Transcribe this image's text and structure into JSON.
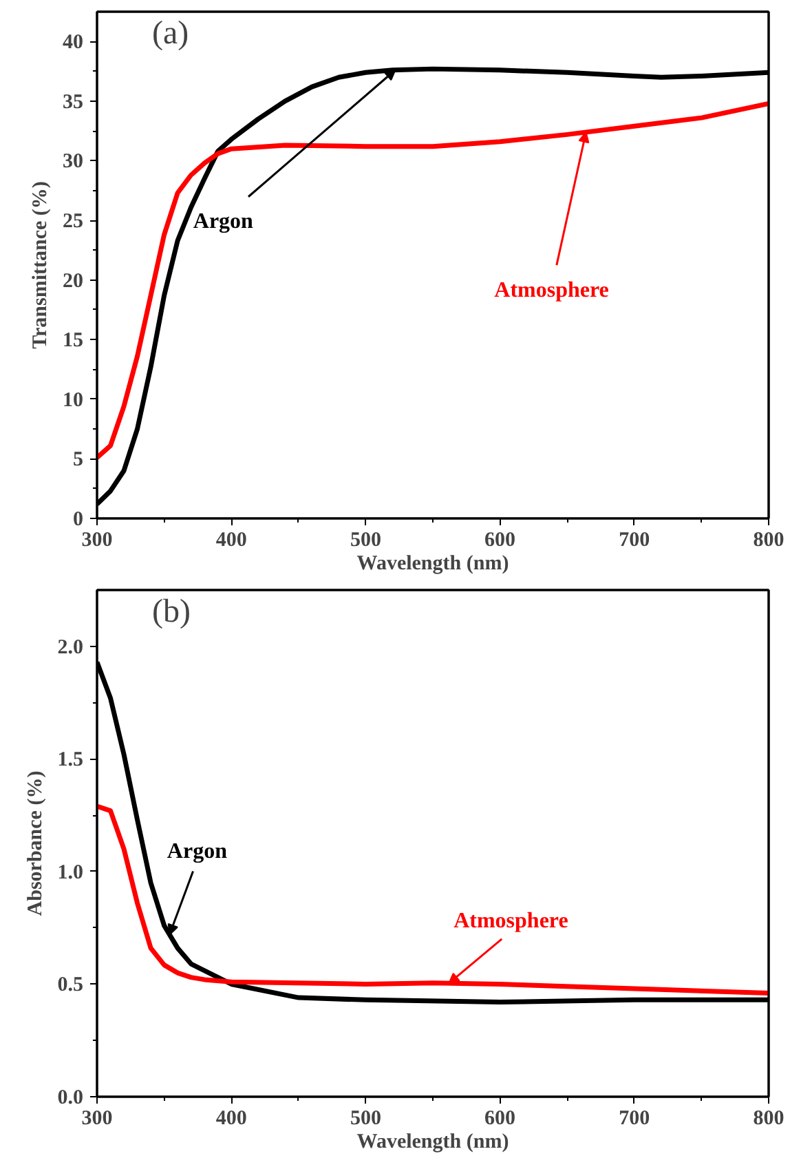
{
  "chart_data": [
    {
      "type": "line",
      "title": "(a)",
      "xlabel": "Wavelength (nm)",
      "ylabel": "Transmittance (%)",
      "xlim": [
        300,
        800
      ],
      "ylim": [
        0,
        42.5
      ],
      "xticks": [
        300,
        400,
        500,
        600,
        700,
        800
      ],
      "yticks": [
        0,
        5,
        10,
        15,
        20,
        25,
        30,
        35,
        40
      ],
      "grid": false,
      "legend": false,
      "marker": "none",
      "line_style": "solid",
      "series": [
        {
          "name": "Argon",
          "color": "#000000",
          "x": [
            300,
            310,
            320,
            330,
            340,
            350,
            360,
            370,
            380,
            390,
            400,
            420,
            440,
            460,
            480,
            500,
            520,
            550,
            600,
            650,
            700,
            720,
            750,
            800
          ],
          "values": [
            1.2,
            2.3,
            4,
            7.5,
            12.7,
            18.7,
            23.3,
            26.1,
            28.5,
            30.8,
            31.8,
            33.5,
            35,
            36.2,
            37,
            37.4,
            37.6,
            37.7,
            37.6,
            37.4,
            37.1,
            37,
            37.1,
            37.4
          ]
        },
        {
          "name": "Atmosphere",
          "color": "#ff0000",
          "x": [
            300,
            310,
            320,
            330,
            340,
            350,
            360,
            370,
            380,
            390,
            400,
            440,
            500,
            550,
            600,
            650,
            700,
            750,
            800
          ],
          "values": [
            5.1,
            6.1,
            9.4,
            13.6,
            18.7,
            23.8,
            27.3,
            28.8,
            29.8,
            30.6,
            31,
            31.3,
            31.2,
            31.2,
            31.6,
            32.2,
            32.9,
            33.6,
            34.8
          ]
        }
      ]
    },
    {
      "type": "line",
      "title": "(b)",
      "xlabel": "Wavelength (nm)",
      "ylabel": "Absorbance (%)",
      "xlim": [
        300,
        800
      ],
      "ylim": [
        0,
        2.25
      ],
      "xticks": [
        300,
        400,
        500,
        600,
        700,
        800
      ],
      "yticks": [
        {
          "value": 0,
          "label": "0.0"
        },
        0.5,
        {
          "value": 1,
          "label": "1.0"
        },
        1.5,
        {
          "value": 2,
          "label": "2.0"
        }
      ],
      "grid": false,
      "legend": false,
      "marker": "none",
      "line_style": "solid",
      "series": [
        {
          "name": "Argon",
          "color": "#000000",
          "x": [
            300,
            310,
            320,
            330,
            340,
            350,
            360,
            370,
            380,
            400,
            450,
            500,
            600,
            700,
            800
          ],
          "values": [
            1.93,
            1.77,
            1.52,
            1.23,
            0.95,
            0.76,
            0.66,
            0.59,
            0.56,
            0.5,
            0.44,
            0.43,
            0.42,
            0.43,
            0.43
          ]
        },
        {
          "name": "Atmosphere",
          "color": "#ff0000",
          "x": [
            300,
            310,
            320,
            330,
            340,
            350,
            360,
            370,
            380,
            400,
            500,
            550,
            600,
            700,
            800
          ],
          "values": [
            1.29,
            1.27,
            1.1,
            0.86,
            0.66,
            0.585,
            0.55,
            0.53,
            0.52,
            0.51,
            0.5,
            0.505,
            0.5,
            0.48,
            0.46
          ]
        }
      ]
    }
  ]
}
